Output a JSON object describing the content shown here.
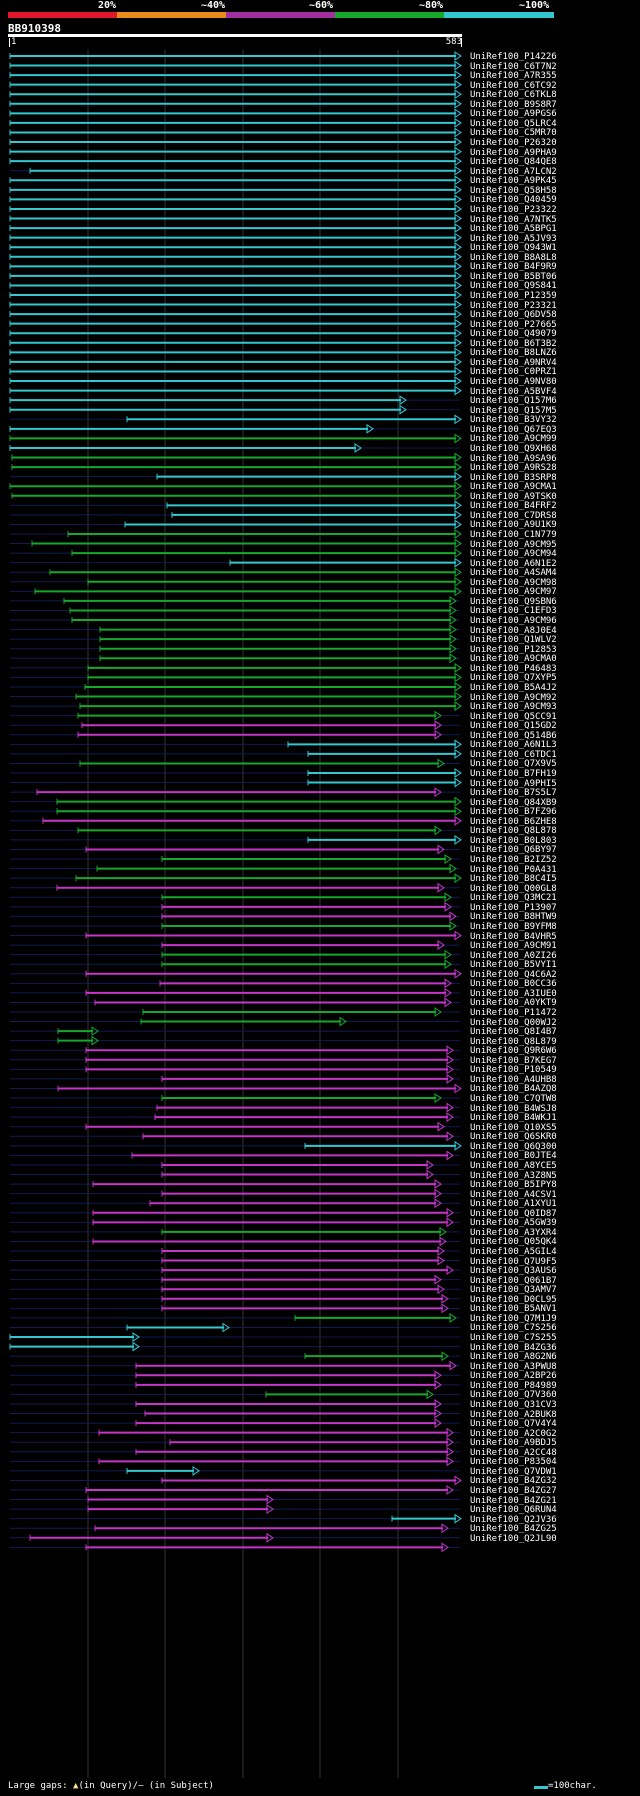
{
  "legend": {
    "labels": [
      "20%",
      "~40%",
      "~60%",
      "~80%",
      "~100%"
    ],
    "colors": [
      "#e0162a",
      "#e88a1c",
      "#a32ea0",
      "#15a82b",
      "#33c8d0"
    ]
  },
  "query": {
    "title": "BB910398",
    "start": "1",
    "end": "583"
  },
  "colors": {
    "cyan": "#33c8d0",
    "green": "#15a82b",
    "magenta": "#c535c8",
    "dark": "#121a55"
  },
  "hits": [
    "UniRef100_P14226",
    "UniRef100_C6T7N2",
    "UniRef100_A7R355",
    "UniRef100_C6TC92",
    "UniRef100_C6TKL8",
    "UniRef100_B9S8R7",
    "UniRef100_A9PGS6",
    "UniRef100_Q5LRC4",
    "UniRef100_C5MR70",
    "UniRef100_P26320",
    "UniRef100_A9PHA9",
    "UniRef100_Q84QE8",
    "UniRef100_A7LCN2",
    "UniRef100_A9PK45",
    "UniRef100_Q58H58",
    "UniRef100_Q40459",
    "UniRef100_P23322",
    "UniRef100_A7NTK5",
    "UniRef100_A5BPG1",
    "UniRef100_A5JV93",
    "UniRef100_Q943W1",
    "UniRef100_B8A8L8",
    "UniRef100_B4F9R9",
    "UniRef100_B5BT06",
    "UniRef100_Q9S841",
    "UniRef100_P12359",
    "UniRef100_P23321",
    "UniRef100_Q6DV58",
    "UniRef100_P27665",
    "UniRef100_Q49079",
    "UniRef100_B6T3B2",
    "UniRef100_B8LNZ6",
    "UniRef100_A9NRV4",
    "UniRef100_C0PRZ1",
    "UniRef100_A9NV80",
    "UniRef100_A5BVF4",
    "UniRef100_Q157M6",
    "UniRef100_Q157M5",
    "UniRef100_B3VY32",
    "UniRef100_Q67EQ3",
    "UniRef100_A9CM99",
    "UniRef100_Q9XH68",
    "UniRef100_A9SA96",
    "UniRef100_A9RS28",
    "UniRef100_B3SRP8",
    "UniRef100_A9CMA1",
    "UniRef100_A9TSK0",
    "UniRef100_B4FRF2",
    "UniRef100_C7DRS8",
    "UniRef100_A9U1K9",
    "UniRef100_C1N779",
    "UniRef100_A9CM95",
    "UniRef100_A9CM94",
    "UniRef100_A6N1E2",
    "UniRef100_A4SAM4",
    "UniRef100_A9CM98",
    "UniRef100_A9CM97",
    "UniRef100_Q9SBN6",
    "UniRef100_C1EFD3",
    "UniRef100_A9CM96",
    "UniRef100_A8J0E4",
    "UniRef100_Q1WLV2",
    "UniRef100_P12853",
    "UniRef100_A9CMA0",
    "UniRef100_P46483",
    "UniRef100_Q7XYP5",
    "UniRef100_B5A4J2",
    "UniRef100_A9CM92",
    "UniRef100_A9CM93",
    "UniRef100_Q5CC91",
    "UniRef100_Q15GD2",
    "UniRef100_Q514B6",
    "UniRef100_A6N1L3",
    "UniRef100_C6TDC1",
    "UniRef100_Q7X9V5",
    "UniRef100_B7FH19",
    "UniRef100_A9PHI5",
    "UniRef100_B7S5L7",
    "UniRef100_Q84XB9",
    "UniRef100_B7FZ96",
    "UniRef100_B6ZHE8",
    "UniRef100_Q8L878",
    "UniRef100_B0L803",
    "UniRef100_Q6BY97",
    "UniRef100_B2IZ52",
    "UniRef100_P0A431",
    "UniRef100_B8C4I5",
    "UniRef100_Q00GL8",
    "UniRef100_Q3MC21",
    "UniRef100_P13907",
    "UniRef100_B8HTW9",
    "UniRef100_B9YFM8",
    "UniRef100_B4VHR5",
    "UniRef100_A9CM91",
    "UniRef100_A0ZI26",
    "UniRef100_B5VYI1",
    "UniRef100_Q4C6A2",
    "UniRef100_B0CC36",
    "UniRef100_A3IUE0",
    "UniRef100_A0YKT9",
    "UniRef100_P11472",
    "UniRef100_Q00WJ2",
    "UniRef100_Q8I4B7",
    "UniRef100_Q8L879",
    "UniRef100_Q9R6W6",
    "UniRef100_B7KEG7",
    "UniRef100_P10549",
    "UniRef100_A4UHB8",
    "UniRef100_B4AZQ8",
    "UniRef100_C7QTW8",
    "UniRef100_B4WSJ8",
    "UniRef100_B4WKJ1",
    "UniRef100_Q10XS5",
    "UniRef100_Q6SKR0",
    "UniRef100_Q6Q300",
    "UniRef100_B0JTE4",
    "UniRef100_A8YCE5",
    "UniRef100_A3Z8N5",
    "UniRef100_B5IPY8",
    "UniRef100_A4CSV1",
    "UniRef100_A1XYU1",
    "UniRef100_Q0ID87",
    "UniRef100_A5GW39",
    "UniRef100_A3YXR4",
    "UniRef100_Q05QK4",
    "UniRef100_A5GIL4",
    "UniRef100_Q7U9F5",
    "UniRef100_Q3AUS6",
    "UniRef100_Q061B7",
    "UniRef100_Q3AMV7",
    "UniRef100_D0CL95",
    "UniRef100_B5ANV1",
    "UniRef100_Q7M1J9",
    "UniRef100_C7S256",
    "UniRef100_C7S255",
    "UniRef100_B4ZG36",
    "UniRef100_A8G2N6",
    "UniRef100_A3PWU8",
    "UniRef100_A2BP26",
    "UniRef100_P84989",
    "UniRef100_Q7V360",
    "UniRef100_Q31CV3",
    "UniRef100_A2BUK8",
    "UniRef100_Q7V4Y4",
    "UniRef100_A2C0G2",
    "UniRef100_A9BDJ5",
    "UniRef100_A2CC48",
    "UniRef100_P83504",
    "UniRef100_Q7VDW1",
    "UniRef100_B4ZG32",
    "UniRef100_B4ZG27",
    "UniRef100_B4ZG21",
    "UniRef100_Q6RUN4",
    "UniRef100_Q2JV36",
    "UniRef100_B4ZG25",
    "UniRef100_Q2JL90"
  ],
  "footer": {
    "large_gaps_label": "Large gaps:",
    "in_query_text": "(in Query)/",
    "in_subject_text": "(in Subject)",
    "gap_query_symbol": "▲",
    "gap_subject_symbol": "–",
    "scale_label": "=100char."
  }
}
